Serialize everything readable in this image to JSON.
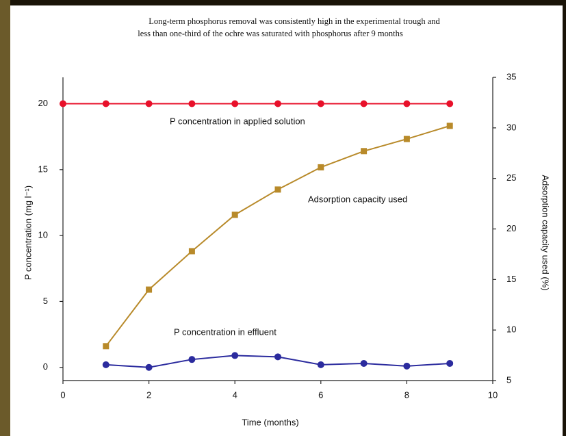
{
  "chart_data": {
    "type": "line",
    "title_lines": [
      "Long-term phosphorus removal was consistently high in the experimental trough and",
      "less than one-third of the ochre was saturated with phosphorus after 9 months"
    ],
    "x_label": "Time (months)",
    "y_label": "P concentration (mg l⁻¹)",
    "y2_label": "Adsorption capacity used (%)",
    "x": [
      0,
      1,
      2,
      3,
      4,
      5,
      6,
      7,
      8,
      9
    ],
    "xlim": [
      0,
      10
    ],
    "xticks": [
      0,
      2,
      4,
      6,
      8,
      10
    ],
    "ylim": [
      -1,
      22
    ],
    "yticks": [
      0,
      5,
      10,
      15,
      20
    ],
    "y2lim": [
      5,
      35
    ],
    "y2ticks": [
      5,
      10,
      15,
      20,
      25,
      30,
      35
    ],
    "series": [
      {
        "name": "P  concentration in applied solution",
        "color": "#e8102a",
        "marker": "circle",
        "values": [
          20,
          20,
          20,
          20,
          20,
          20,
          20,
          20,
          20,
          20
        ]
      },
      {
        "name": "Adsorption capacity used",
        "color": "#b88a2a",
        "marker": "square",
        "axis": "y2",
        "values": [
          null,
          8.4,
          14.0,
          17.8,
          21.4,
          23.9,
          26.1,
          27.7,
          28.9,
          30.2
        ]
      },
      {
        "name": "P  concentration in effluent",
        "color": "#2b2b9e",
        "marker": "circle",
        "values": [
          null,
          0.2,
          0.0,
          0.6,
          0.9,
          0.8,
          0.2,
          0.3,
          0.1,
          0.3
        ]
      }
    ]
  }
}
